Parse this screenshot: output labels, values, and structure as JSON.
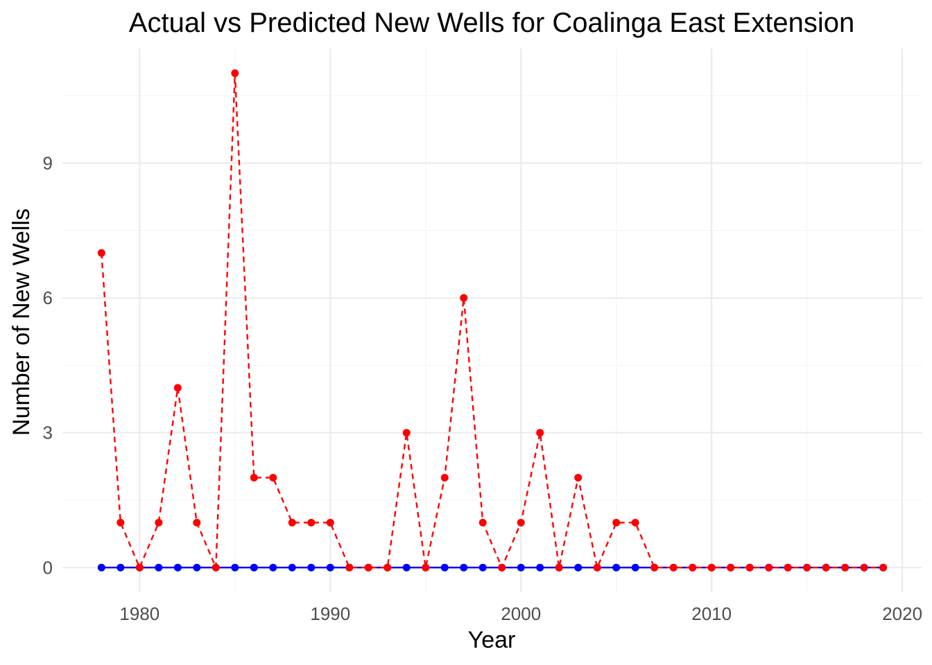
{
  "chart_data": {
    "type": "line",
    "title": "Actual vs Predicted New Wells for Coalinga  East  Extension",
    "xlabel": "Year",
    "ylabel": "Number of New Wells",
    "x": [
      1978,
      1979,
      1980,
      1981,
      1982,
      1983,
      1984,
      1985,
      1986,
      1987,
      1988,
      1989,
      1990,
      1991,
      1992,
      1993,
      1994,
      1995,
      1996,
      1997,
      1998,
      1999,
      2000,
      2001,
      2002,
      2003,
      2004,
      2005,
      2006,
      2007,
      2008,
      2009,
      2010,
      2011,
      2012,
      2013,
      2014,
      2015,
      2016,
      2017,
      2018,
      2019
    ],
    "xlim": [
      1975.95,
      2021.05
    ],
    "ylim": [
      -0.55,
      11.55
    ],
    "x_ticks": [
      1980,
      1990,
      2000,
      2010,
      2020
    ],
    "x_tick_labels": [
      "1980",
      "1990",
      "2000",
      "2010",
      "2020"
    ],
    "y_ticks": [
      0,
      3,
      6,
      9
    ],
    "y_tick_labels": [
      "0",
      "3",
      "6",
      "9"
    ],
    "grid": true,
    "legend": "none",
    "series": [
      {
        "name": "Predicted",
        "color": "#0000ff",
        "line_style": "solid",
        "values": [
          0,
          0,
          0,
          0,
          0,
          0,
          0,
          0,
          0,
          0,
          0,
          0,
          0,
          0,
          0,
          0,
          0,
          0,
          0,
          0,
          0,
          0,
          0,
          0,
          0,
          0,
          0,
          0,
          0,
          0,
          0,
          0,
          0,
          0,
          0,
          0,
          0,
          0,
          0,
          0,
          0,
          0
        ]
      },
      {
        "name": "Actual",
        "color": "#ff0000",
        "line_style": "dashed",
        "values": [
          7,
          1,
          0,
          1,
          4,
          1,
          0,
          11,
          2,
          2,
          1,
          1,
          1,
          0,
          0,
          0,
          3,
          0,
          2,
          6,
          1,
          0,
          1,
          3,
          0,
          2,
          0,
          1,
          1,
          0,
          0,
          0,
          0,
          0,
          0,
          0,
          0,
          0,
          0,
          0,
          0,
          0
        ]
      }
    ]
  }
}
